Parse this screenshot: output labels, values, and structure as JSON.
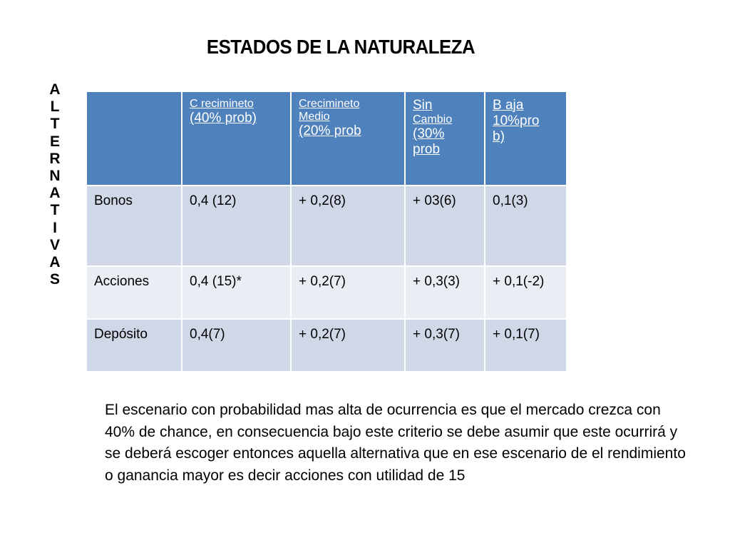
{
  "title": "ESTADOS DE LA NATURALEZA",
  "vertical_label": [
    "A",
    "L",
    "T",
    "E",
    "R",
    "N",
    "A",
    "T",
    "I",
    "V",
    "A",
    "S"
  ],
  "table": {
    "headers": [
      {
        "line1": "",
        "line2": "",
        "line3": "",
        "line4": ""
      },
      {
        "line1": "C recimineto",
        "line2": "(40% prob)"
      },
      {
        "line1": "Crecimineto",
        "line2": "Medio",
        "line3": "(20% prob"
      },
      {
        "line1": "Sin",
        "line2": "Cambio",
        "line3": "(30%",
        "line4": "prob"
      },
      {
        "line1": "B aja",
        "line2": "10%pro",
        "line3": "b)"
      }
    ],
    "rows": [
      [
        "Bonos",
        "0,4 (12)",
        "+  0,2(8)",
        "+  03(6)",
        "0,1(3)"
      ],
      [
        "Acciones",
        "0,4 (15)*",
        "+  0,2(7)",
        "+ 0,3(3)",
        "+ 0,1(-2)"
      ],
      [
        "Depósito",
        "0,4(7)",
        "+  0,2(7)",
        "+ 0,3(7)",
        "+ 0,1(7)"
      ]
    ]
  },
  "paragraph": "El escenario con probabilidad mas alta de ocurrencia es que el mercado crezca con 40% de chance, en consecuencia  bajo este criterio se debe asumir que este  ocurrirá y se deberá escoger entonces aquella alternativa que en ese escenario de el rendimiento o ganancia mayor es decir acciones con utilidad de 15",
  "colors": {
    "header_bg": "#4f81bd",
    "row_odd": "#d0d8e8",
    "row_even": "#e9edf4"
  }
}
